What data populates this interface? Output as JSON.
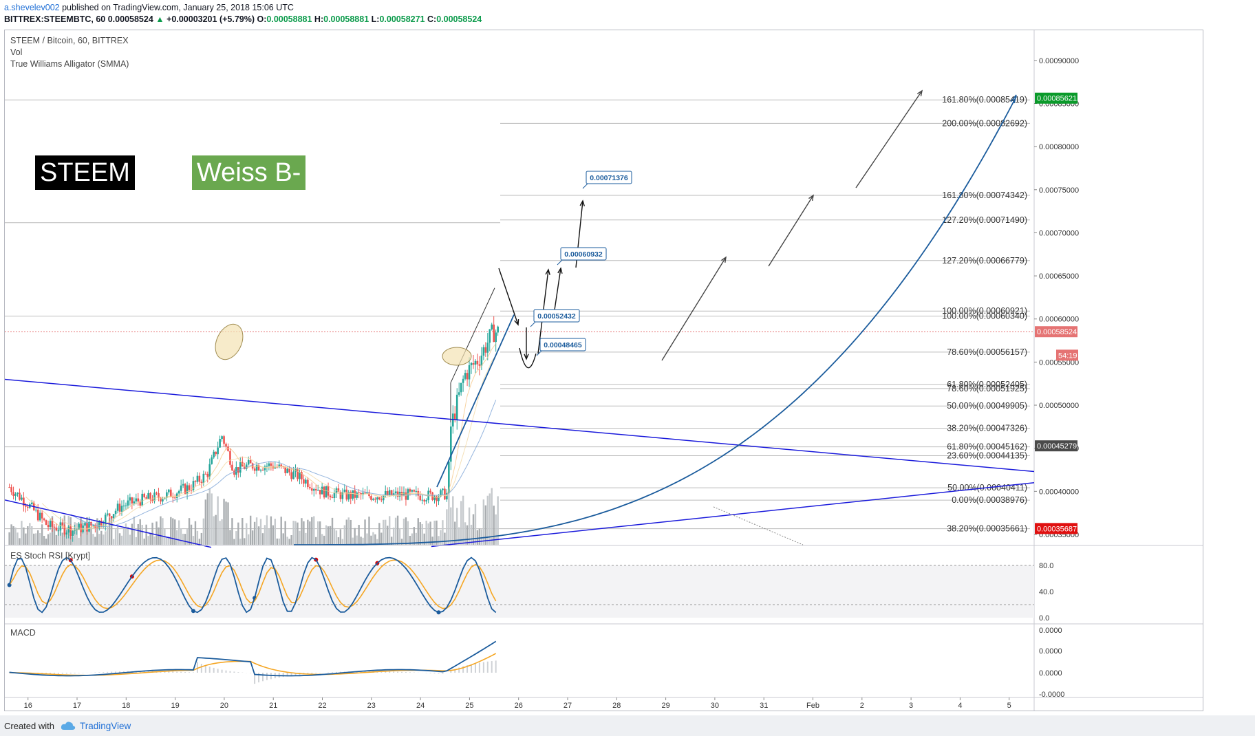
{
  "header": {
    "author": "a.shevelev002",
    "published": " published on TradingView.com, January 25, 2018 15:06 UTC",
    "symbol": "BITTREX:STEEMBTC, 60",
    "last": "0.00058524",
    "change": "+0.00003201 (+5.79%)",
    "o_label": "O:",
    "o_val": "0.00058881",
    "h_label": "H:",
    "h_val": "0.00058881",
    "l_label": "L:",
    "l_val": "0.00058271",
    "c_label": "C:",
    "c_val": "0.00058524"
  },
  "legend": {
    "pair": "STEEM / Bitcoin, 60, BITTREX",
    "vol": "Vol",
    "alligator": "True Williams Alligator (SMMA)",
    "stoch": "ES Stoch RSI [Krypt]",
    "macd": "MACD"
  },
  "badges": {
    "ticker": "STEEM",
    "rating": "Weiss B-"
  },
  "colors": {
    "up": "#26a69a",
    "down": "#ef5350",
    "trend": "#1a1adb",
    "curve": "#1a5b9c",
    "stoch_k": "#1a5b9c",
    "stoch_d": "#f5a623",
    "macd": "#1a5b9c",
    "signal": "#f5a623"
  },
  "chart_data": {
    "type": "candlestick",
    "price_axis": [
      "0.00090000",
      "0.00085000",
      "0.00080000",
      "0.00075000",
      "0.00070000",
      "0.00065000",
      "0.00060000",
      "0.00055000",
      "0.00050000",
      "0.00045000",
      "0.00040000",
      "0.00035000"
    ],
    "price_axis_values": [
      0.0009,
      0.00085,
      0.0008,
      0.00075,
      0.0007,
      0.00065,
      0.0006,
      0.00055,
      0.0005,
      0.00045,
      0.0004,
      0.00035
    ],
    "ylim": [
      0.000338,
      0.000935
    ],
    "x_labels": [
      "16",
      "17",
      "18",
      "19",
      "20",
      "21",
      "22",
      "23",
      "24",
      "25",
      "26",
      "27",
      "28",
      "29",
      "30",
      "31",
      "Feb",
      "2",
      "3",
      "4",
      "5"
    ],
    "markers": [
      {
        "text": "0.00085621",
        "value": 0.00085621,
        "bg": "#0a9a2a"
      },
      {
        "text": "0.00058524",
        "value": 0.00058524,
        "bg": "#e57373"
      },
      {
        "text": "54:19",
        "value": 0.000558,
        "bg": "#e57373"
      },
      {
        "text": "0.00045279",
        "value": 0.00045279,
        "bg": "#4a4a4a"
      },
      {
        "text": "0.00035687",
        "value": 0.00035687,
        "bg": "#e01010"
      }
    ],
    "fib_labels": [
      {
        "text": "161.80%(0.00085419)",
        "value": 0.00085419
      },
      {
        "text": "200.00%(0.00082692)",
        "value": 0.00082692
      },
      {
        "text": "161.80%(0.00074342)",
        "value": 0.00074342
      },
      {
        "text": "127.20%(0.00071490)",
        "value": 0.0007149
      },
      {
        "text": "127.20%(0.00066779)",
        "value": 0.00066779
      },
      {
        "text": "100.00%(0.00060921)",
        "value": 0.00060921
      },
      {
        "text": "100.00%(0.00060340)",
        "value": 0.0006034
      },
      {
        "text": "78.60%(0.00056157)",
        "value": 0.00056157
      },
      {
        "text": "61.80%(0.00052405)",
        "value": 0.00052405
      },
      {
        "text": "78.60%(0.00051925)",
        "value": 0.00051925
      },
      {
        "text": "50.00%(0.00049905)",
        "value": 0.00049905
      },
      {
        "text": "38.20%(0.00047326)",
        "value": 0.00047326
      },
      {
        "text": "61.80%(0.00045162)",
        "value": 0.00045162
      },
      {
        "text": "23.60%(0.00044135)",
        "value": 0.00044135
      },
      {
        "text": "50.00%(0.00040411)",
        "value": 0.00040411
      },
      {
        "text": "0.00%(0.00038976)",
        "value": 0.00038976
      },
      {
        "text": "38.20%(0.00035661)",
        "value": 0.00035661
      }
    ],
    "callouts": [
      {
        "text": "0.00071376",
        "value": 0.00071376
      },
      {
        "text": "0.00060932",
        "value": 0.00060932
      },
      {
        "text": "0.00052432",
        "value": 0.00052432
      },
      {
        "text": "0.00048465",
        "value": 0.00048465
      }
    ],
    "stoch_axis": [
      "80.0",
      "40.0",
      "0.0"
    ],
    "stoch_axis_values": [
      80,
      40,
      0
    ],
    "macd_axis": [
      "0.0000",
      "0.0000",
      "0.0000",
      "-0.0000"
    ],
    "ohlc_anchors": [
      {
        "day": 15.62,
        "close": 0.000405
      },
      {
        "day": 16.0,
        "close": 0.000385
      },
      {
        "day": 16.4,
        "close": 0.00036
      },
      {
        "day": 16.9,
        "close": 0.000355
      },
      {
        "day": 17.4,
        "close": 0.000362
      },
      {
        "day": 17.9,
        "close": 0.000383
      },
      {
        "day": 18.3,
        "close": 0.00039
      },
      {
        "day": 18.8,
        "close": 0.000395
      },
      {
        "day": 19.3,
        "close": 0.000405
      },
      {
        "day": 19.65,
        "close": 0.00042
      },
      {
        "day": 19.95,
        "close": 0.000465
      },
      {
        "day": 20.2,
        "close": 0.000425
      },
      {
        "day": 20.5,
        "close": 0.00043
      },
      {
        "day": 21.0,
        "close": 0.00043
      },
      {
        "day": 21.5,
        "close": 0.000418
      },
      {
        "day": 22.0,
        "close": 0.0004
      },
      {
        "day": 22.5,
        "close": 0.000395
      },
      {
        "day": 23.0,
        "close": 0.000395
      },
      {
        "day": 23.6,
        "close": 0.000396
      },
      {
        "day": 24.2,
        "close": 0.000395
      },
      {
        "day": 24.55,
        "close": 0.000397
      },
      {
        "day": 24.62,
        "close": 0.000475
      },
      {
        "day": 24.9,
        "close": 0.000535
      },
      {
        "day": 25.2,
        "close": 0.000555
      },
      {
        "day": 25.48,
        "close": 0.000585
      },
      {
        "day": 25.62,
        "close": 0.000585
      }
    ]
  }
}
